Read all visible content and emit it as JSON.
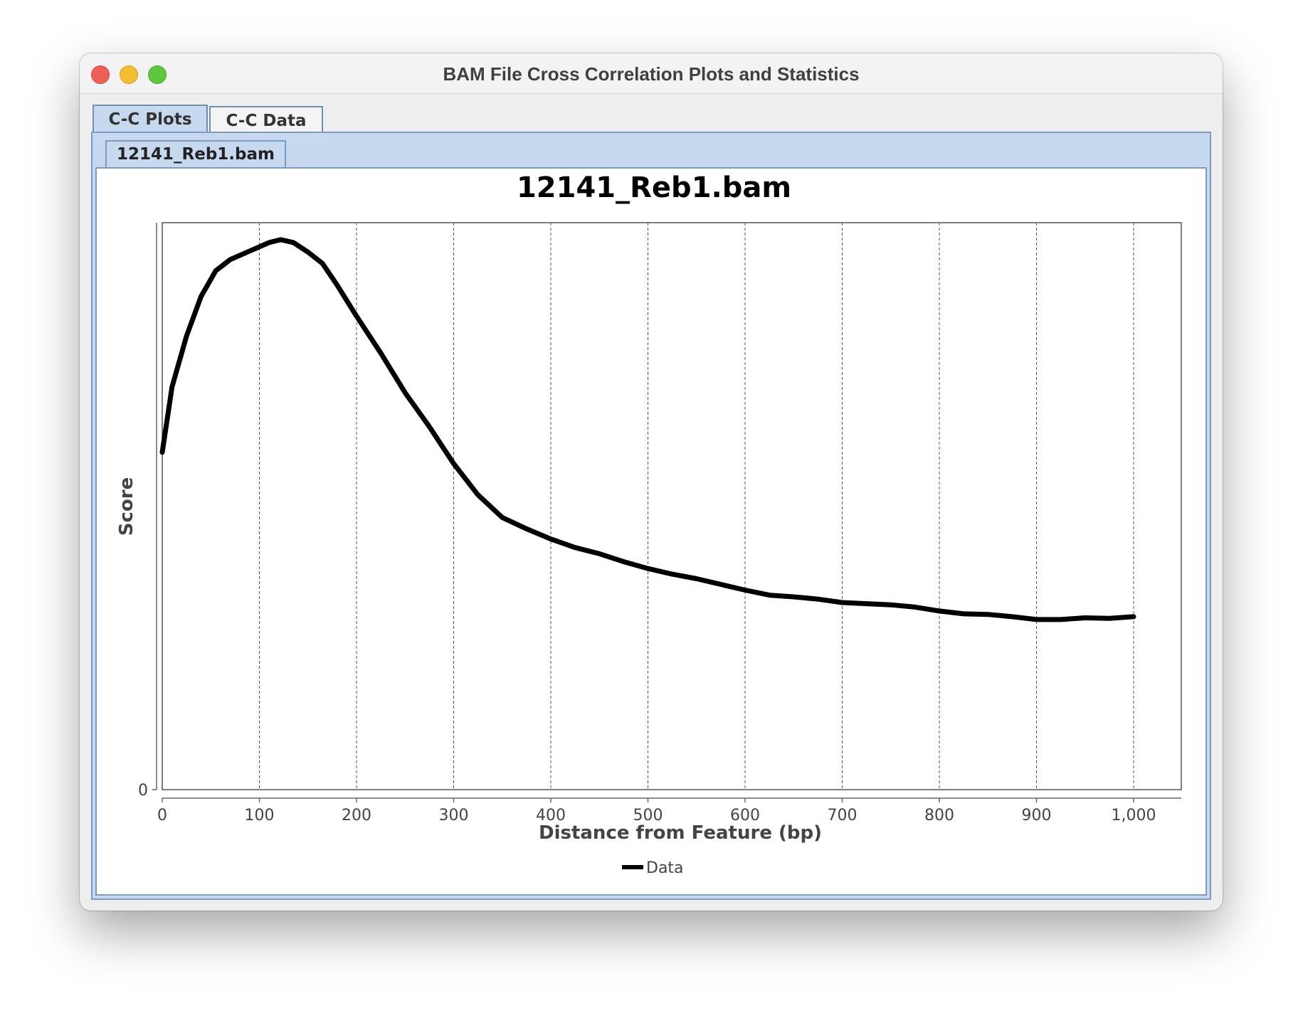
{
  "window": {
    "title": "BAM File Cross Correlation Plots and Statistics"
  },
  "tabs": [
    {
      "label": "C-C Plots",
      "active": true
    },
    {
      "label": "C-C Data",
      "active": false
    }
  ],
  "file_tab": {
    "label": "12141_Reb1.bam"
  },
  "chart_data": {
    "type": "line",
    "title": "12141_Reb1.bam",
    "xlabel": "Distance from Feature (bp)",
    "ylabel": "Score",
    "xlim": [
      0,
      1050
    ],
    "ylim": [
      0,
      1.0
    ],
    "x_ticks": [
      "0",
      "100",
      "200",
      "300",
      "400",
      "500",
      "600",
      "700",
      "800",
      "900",
      "1,000"
    ],
    "y_ticks": [
      "0"
    ],
    "grid": "vertical-dashed",
    "legend": "bottom-center",
    "series": [
      {
        "name": "Data",
        "color": "#000000",
        "x": [
          0,
          10,
          25,
          40,
          55,
          70,
          90,
          110,
          122,
          135,
          150,
          165,
          180,
          200,
          225,
          250,
          275,
          300,
          325,
          350,
          375,
          400,
          425,
          450,
          475,
          500,
          525,
          550,
          575,
          600,
          625,
          650,
          675,
          700,
          725,
          750,
          775,
          800,
          825,
          850,
          875,
          900,
          925,
          950,
          975,
          1000
        ],
        "y": [
          0.595,
          0.71,
          0.8,
          0.87,
          0.915,
          0.935,
          0.95,
          0.965,
          0.97,
          0.965,
          0.948,
          0.928,
          0.89,
          0.835,
          0.77,
          0.7,
          0.64,
          0.575,
          0.52,
          0.48,
          0.46,
          0.442,
          0.427,
          0.416,
          0.402,
          0.39,
          0.38,
          0.372,
          0.362,
          0.352,
          0.343,
          0.34,
          0.336,
          0.33,
          0.328,
          0.326,
          0.322,
          0.315,
          0.31,
          0.309,
          0.305,
          0.3,
          0.3,
          0.303,
          0.302,
          0.305
        ]
      }
    ]
  }
}
